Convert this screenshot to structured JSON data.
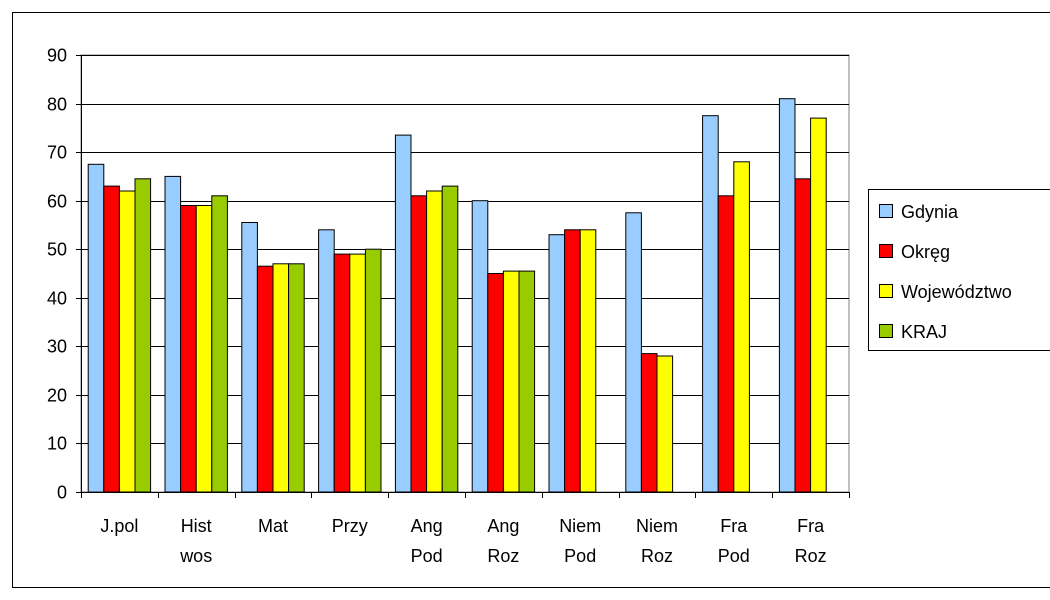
{
  "chart_data": {
    "type": "bar",
    "categories": [
      [
        "J.pol"
      ],
      [
        "Hist",
        "wos"
      ],
      [
        "Mat"
      ],
      [
        "Przy"
      ],
      [
        "Ang",
        "Pod"
      ],
      [
        "Ang",
        "Roz"
      ],
      [
        "Niem",
        "Pod"
      ],
      [
        "Niem",
        "Roz"
      ],
      [
        "Fra",
        "Pod"
      ],
      [
        "Fra",
        "Roz"
      ]
    ],
    "series": [
      {
        "name": "Gdynia",
        "color": "#99CCFF",
        "values": [
          67.5,
          65,
          55.5,
          54,
          73.5,
          60,
          53,
          57.5,
          77.5,
          81
        ]
      },
      {
        "name": "Okręg",
        "color": "#FF0000",
        "values": [
          63,
          59,
          46.5,
          49,
          61,
          45,
          54,
          28.5,
          61,
          64.5
        ]
      },
      {
        "name": "Województwo",
        "color": "#FFFF00",
        "values": [
          62,
          59,
          47,
          49,
          62,
          45.5,
          54,
          28,
          68,
          77
        ]
      },
      {
        "name": "KRAJ",
        "color": "#99CC00",
        "values": [
          64.5,
          61,
          47,
          50,
          63,
          45.5,
          null,
          null,
          null,
          null
        ]
      }
    ],
    "ylim": [
      0,
      90
    ],
    "yticks": [
      "0",
      "10",
      "20",
      "30",
      "40",
      "50",
      "60",
      "70",
      "80",
      "90"
    ],
    "grid": true,
    "legend_position": "right",
    "plot_background": "#ffffff",
    "border_color": "#000000"
  }
}
